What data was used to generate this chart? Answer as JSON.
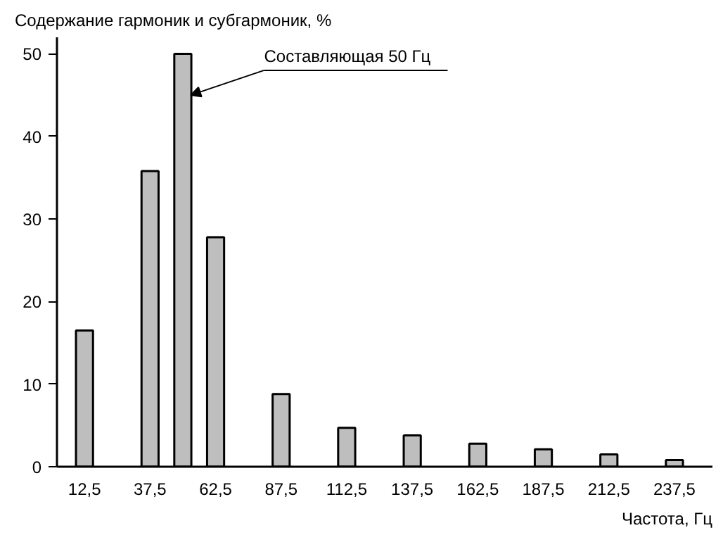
{
  "chart_data": {
    "type": "bar",
    "ylabel": "Содержание гармоник и субгармоник, %",
    "xlabel": "Частота, Гц",
    "x": [
      12.5,
      37.5,
      50,
      62.5,
      87.5,
      112.5,
      137.5,
      162.5,
      187.5,
      212.5,
      237.5
    ],
    "values": [
      16.5,
      35.8,
      50,
      27.8,
      8.8,
      4.7,
      3.8,
      2.8,
      2.1,
      1.5,
      0.8
    ],
    "color": "#bebebe",
    "xlim": [
      2,
      252
    ],
    "xticks": [
      {
        "value": 12.5,
        "label": "12,5"
      },
      {
        "value": 37.5,
        "label": "37,5"
      },
      {
        "value": 62.5,
        "label": "62,5"
      },
      {
        "value": 87.5,
        "label": "87,5"
      },
      {
        "value": 112.5,
        "label": "112,5"
      },
      {
        "value": 137.5,
        "label": "137,5"
      },
      {
        "value": 162.5,
        "label": "162,5"
      },
      {
        "value": 187.5,
        "label": "187,5"
      },
      {
        "value": 212.5,
        "label": "212,5"
      },
      {
        "value": 237.5,
        "label": "237,5"
      }
    ],
    "ylim": [
      0,
      52
    ],
    "yticks": [
      0,
      10,
      20,
      30,
      40,
      50
    ],
    "grid": false,
    "annotations": [
      {
        "text": "Составляющая 50 Гц",
        "x": 53,
        "y": 45
      }
    ]
  }
}
